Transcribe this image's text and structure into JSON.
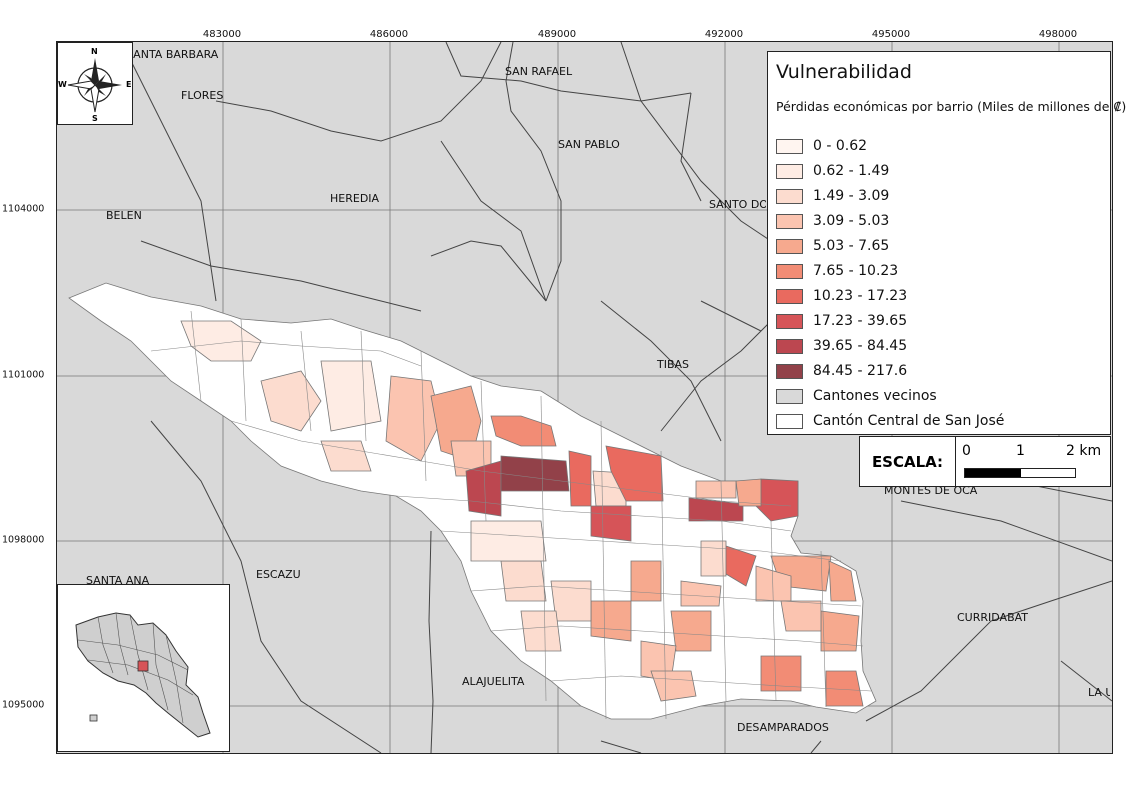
{
  "map": {
    "coords_x": [
      "483000",
      "486000",
      "489000",
      "492000",
      "495000",
      "498000"
    ],
    "coords_y": [
      "1104000",
      "1101000",
      "1098000",
      "1095000"
    ],
    "place_labels": [
      "SANTA BARBARA",
      "FLORES",
      "SAN RAFAEL",
      "SAN PABLO",
      "HEREDIA",
      "BELEN",
      "SANTO DOMINGO",
      "TIBAS",
      "MONTES DE OCA",
      "ESCAZU",
      "SANTA ANA",
      "ALAJUELITA",
      "DESAMPARADOS",
      "CURRIDABAT",
      "LA UNION"
    ]
  },
  "north_arrow": {
    "n": "N",
    "s": "S",
    "e": "E",
    "w": "W"
  },
  "legend": {
    "title": "Vulnerabilidad",
    "subtitle": "Pérdidas económicas por barrio (Miles de millones de ₡)",
    "items": [
      {
        "label": "0 - 0.62",
        "color": "#fff5f0"
      },
      {
        "label": "0.62 - 1.49",
        "color": "#feece4"
      },
      {
        "label": "1.49 - 3.09",
        "color": "#fcdccf"
      },
      {
        "label": "3.09 - 5.03",
        "color": "#fbc4b0"
      },
      {
        "label": "5.03 - 7.65",
        "color": "#f6a98e"
      },
      {
        "label": "7.65 - 10.23",
        "color": "#f28c75"
      },
      {
        "label": "10.23 - 17.23",
        "color": "#e96a5f"
      },
      {
        "label": "17.23 - 39.65",
        "color": "#d65458"
      },
      {
        "label": "39.65 - 84.45",
        "color": "#bc4750"
      },
      {
        "label": "84.45 - 217.6",
        "color": "#924149"
      },
      {
        "label": "Cantones vecinos",
        "color": "#d9d9d9"
      },
      {
        "label": "Cantón Central de San José",
        "color": "#ffffff"
      }
    ]
  },
  "scale": {
    "label": "ESCALA:",
    "ticks": [
      "0",
      "1",
      "2 km"
    ]
  }
}
